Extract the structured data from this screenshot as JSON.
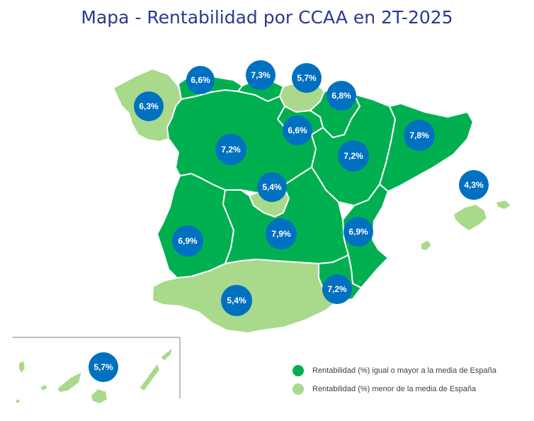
{
  "title": "Mapa - Rentabilidad por CCAA en 2T-2025",
  "colors": {
    "above_average": "#00b050",
    "below_average": "#a9d98a",
    "bubble": "#0070c0",
    "title": "#2b3990"
  },
  "regions": [
    {
      "name": "Galicia",
      "value": "6,3%",
      "category": "below_average"
    },
    {
      "name": "Asturias",
      "value": "6,6%",
      "category": "above_average"
    },
    {
      "name": "Cantabria",
      "value": "7,3%",
      "category": "above_average"
    },
    {
      "name": "País Vasco",
      "value": "5,7%",
      "category": "below_average"
    },
    {
      "name": "Navarra",
      "value": "6,8%",
      "category": "above_average"
    },
    {
      "name": "La Rioja",
      "value": "6,6%",
      "category": "above_average"
    },
    {
      "name": "Castilla y León",
      "value": "7,2%",
      "category": "above_average"
    },
    {
      "name": "Aragón",
      "value": "7,2%",
      "category": "above_average"
    },
    {
      "name": "Cataluña",
      "value": "7,8%",
      "category": "above_average"
    },
    {
      "name": "Madrid",
      "value": "5,4%",
      "category": "below_average"
    },
    {
      "name": "Islas Baleares",
      "value": "4,3%",
      "category": "below_average"
    },
    {
      "name": "Extremadura",
      "value": "6,9%",
      "category": "above_average"
    },
    {
      "name": "Castilla-La Mancha",
      "value": "7,9%",
      "category": "above_average"
    },
    {
      "name": "Comunidad Valenciana",
      "value": "6,9%",
      "category": "above_average"
    },
    {
      "name": "Murcia",
      "value": "7,2%",
      "category": "above_average"
    },
    {
      "name": "Andalucía",
      "value": "5,4%",
      "category": "below_average"
    },
    {
      "name": "Canarias",
      "value": "5,7%",
      "category": "below_average"
    }
  ],
  "legend": [
    {
      "label": "Rentabilidad (%) igual o mayor a la media de España",
      "color": "#00b050"
    },
    {
      "label": "Rentabilidad (%) menor de la media de España",
      "color": "#a9d98a"
    }
  ]
}
